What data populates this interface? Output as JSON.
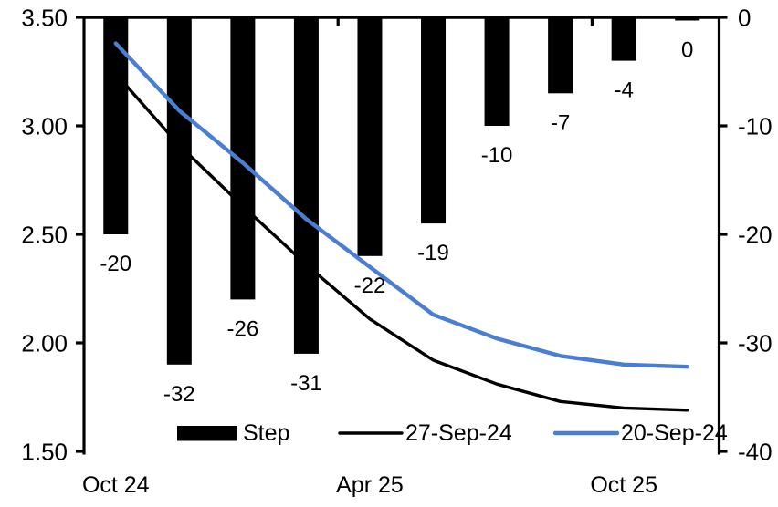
{
  "chart_data": {
    "type": "bar+line combo (meeting-by-meeting policy-rate path)",
    "title": "",
    "categories_count": 10,
    "x_labels": [
      {
        "label": "Oct 24",
        "category": 0
      },
      {
        "label": "Apr 25",
        "category": 4
      },
      {
        "label": "Oct 25",
        "category": 8
      }
    ],
    "left_axis": {
      "side": "left",
      "min": 1.5,
      "max": 3.5,
      "ticks": [
        "3.50",
        "3.00",
        "2.50",
        "2.00",
        "1.50"
      ]
    },
    "right_axis": {
      "side": "right",
      "min": -40,
      "max": 0,
      "ticks": [
        "0",
        "-10",
        "-20",
        "-30",
        "-40"
      ]
    },
    "grid": "off",
    "legend_position": "bottom-inside",
    "bar_series": {
      "name": "Step",
      "axis": "right",
      "color": "#000000",
      "values": [
        -20,
        -32,
        -26,
        -31,
        -22,
        -19,
        -10,
        -7,
        -4,
        0
      ],
      "data_labels": [
        "-20",
        "-32",
        "-26",
        "-31",
        "-22",
        "-19",
        "-10",
        "-7",
        "-4",
        "0"
      ]
    },
    "line_series": [
      {
        "name": "27-Sep-24",
        "axis": "left",
        "color": "#000000",
        "values": [
          3.24,
          2.91,
          2.63,
          2.36,
          2.11,
          1.92,
          1.81,
          1.73,
          1.7,
          1.69
        ]
      },
      {
        "name": "20-Sep-24",
        "axis": "left",
        "color": "#4A7ED3",
        "values": [
          3.38,
          3.07,
          2.83,
          2.57,
          2.35,
          2.13,
          2.02,
          1.94,
          1.9,
          1.89
        ]
      }
    ],
    "legend": [
      "Step",
      "27-Sep-24",
      "20-Sep-24"
    ]
  },
  "colors": {
    "background": "#ffffff",
    "axis": "#000000",
    "bar": "#000000",
    "line_27_sep": "#000000",
    "line_20_sep": "#4A7ED3"
  }
}
